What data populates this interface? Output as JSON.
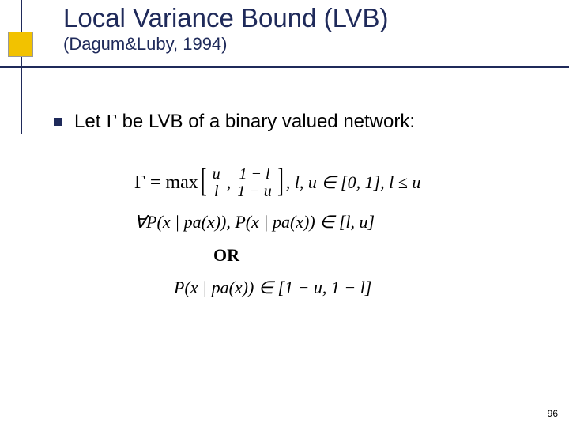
{
  "slide": {
    "title": "Local Variance Bound (LVB)",
    "subtitle": "(Dagum&Luby, 1994)",
    "page_number": "96",
    "title_color": "#1f2a5a",
    "accent_box_color": "#f2c200",
    "rule_color": "#1f2a5a",
    "background_color": "#ffffff",
    "title_fontsize": 33,
    "subtitle_fontsize": 22,
    "body_fontsize": 24,
    "math_fontsize": 22
  },
  "bullets": [
    {
      "prefix": "Let ",
      "symbol": "Γ",
      "suffix": " be LVB of a binary valued network:"
    }
  ],
  "equations": {
    "gamma_eq_prefix": "Γ = max",
    "frac1_num": "u",
    "frac1_den": "l",
    "comma1": ",",
    "frac2_num": "1 − l",
    "frac2_den": "1 − u",
    "tail": ", l, u ∈ [0, 1], l ≤ u",
    "line2": "∀P(x | pa(x)),  P(x | pa(x)) ∈ [l, u]",
    "or_label": "OR",
    "line3": "P(x | pa(x)) ∈ [1 − u, 1 − l]"
  }
}
